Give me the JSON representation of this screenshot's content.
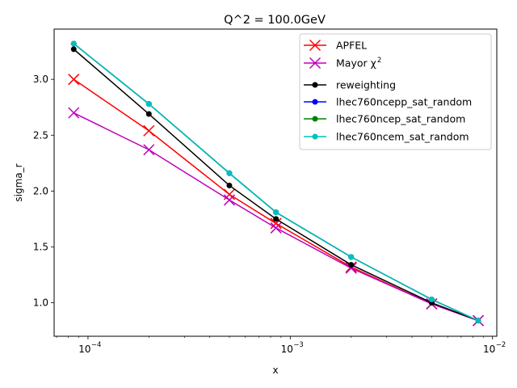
{
  "chart_data": {
    "type": "line",
    "title": "Q^2 = 100.0GeV",
    "xlabel": "x",
    "ylabel": "sigma_r",
    "xscale": "log",
    "xlim": [
      6.8e-05,
      0.0105
    ],
    "ylim": [
      0.7,
      3.45
    ],
    "grid": false,
    "legend_position": "top-right",
    "x": [
      8.5e-05,
      0.0002,
      0.0005,
      0.00085,
      0.002,
      0.005,
      0.0085
    ],
    "xticks": [
      {
        "value": 0.0001,
        "base": "10",
        "exp": "−4"
      },
      {
        "value": 0.001,
        "base": "10",
        "exp": "−3"
      },
      {
        "value": 0.01,
        "base": "10",
        "exp": "−2"
      }
    ],
    "yticks": [
      {
        "value": 1.0,
        "label": "1.0"
      },
      {
        "value": 1.5,
        "label": "1.5"
      },
      {
        "value": 2.0,
        "label": "2.0"
      },
      {
        "value": 2.5,
        "label": "2.5"
      },
      {
        "value": 3.0,
        "label": "3.0"
      }
    ],
    "series": [
      {
        "name": "APFEL",
        "legend_suffix": "",
        "color": "#ff0000",
        "marker": "x",
        "values": [
          3.0,
          2.54,
          1.97,
          1.71,
          1.32,
          0.99,
          0.84
        ]
      },
      {
        "name": "Mayor χ",
        "legend_suffix": "2",
        "color": "#bf00bf",
        "marker": "x",
        "values": [
          2.7,
          2.37,
          1.92,
          1.67,
          1.31,
          0.99,
          0.84
        ]
      },
      {
        "name": "reweighting",
        "legend_suffix": "",
        "color": "#000000",
        "marker": "dot",
        "values": [
          3.27,
          2.69,
          2.05,
          1.75,
          1.34,
          1.0,
          0.84
        ]
      },
      {
        "name": "lhec760ncepp_sat_random",
        "legend_suffix": "",
        "color": "#0000ff",
        "marker": "dot",
        "values": [
          3.32,
          2.78,
          2.16,
          1.81,
          1.41,
          1.03,
          0.84
        ]
      },
      {
        "name": "lhec760ncep_sat_random",
        "legend_suffix": "",
        "color": "#008000",
        "marker": "dot",
        "values": [
          3.32,
          2.78,
          2.16,
          1.81,
          1.41,
          1.03,
          0.84
        ]
      },
      {
        "name": "lhec760ncem_sat_random",
        "legend_suffix": "",
        "color": "#00bfbf",
        "marker": "dot",
        "values": [
          3.32,
          2.78,
          2.16,
          1.81,
          1.41,
          1.03,
          0.84
        ]
      }
    ]
  }
}
